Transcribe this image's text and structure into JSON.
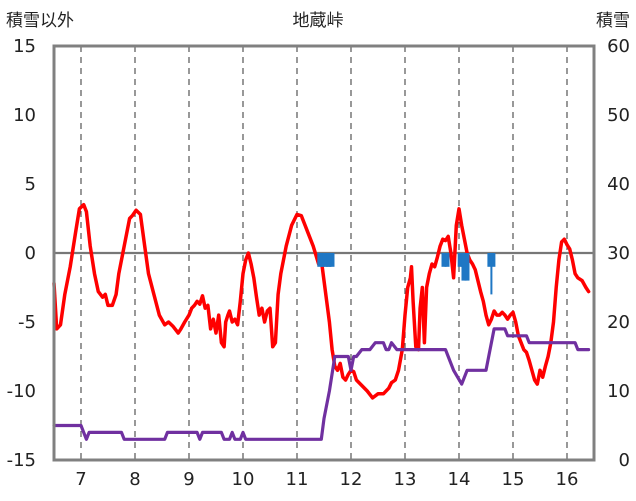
{
  "chart_data": {
    "type": "line",
    "title": "地蔵峠",
    "ylabel_left": "積雪以外",
    "ylabel_right": "積雪",
    "ylim_left": [
      -15,
      15
    ],
    "ylim_right": [
      0,
      60
    ],
    "left_ticks": [
      15,
      10,
      5,
      0,
      -5,
      -10,
      -15
    ],
    "right_ticks": [
      60,
      50,
      40,
      30,
      20,
      10,
      0
    ],
    "xlim": [
      6.5,
      16.5
    ],
    "x_ticks": [
      7,
      8,
      9,
      10,
      11,
      12,
      13,
      14,
      15,
      16
    ],
    "grid": "vertical-dashed",
    "colors": {
      "temperature": "#ff0000",
      "snow_depth": "#7030a0",
      "precipitation": "#1f77c4",
      "zero_line": "#777777",
      "frame": "#808080"
    },
    "series": [
      {
        "axis": "left",
        "color": "#ff0000",
        "points": [
          [
            6.5,
            -2.2
          ],
          [
            6.55,
            -5.5
          ],
          [
            6.62,
            -5.2
          ],
          [
            6.7,
            -3
          ],
          [
            6.8,
            -1
          ],
          [
            6.9,
            1.5
          ],
          [
            6.97,
            3.2
          ],
          [
            7.05,
            3.5
          ],
          [
            7.1,
            3
          ],
          [
            7.17,
            0.5
          ],
          [
            7.25,
            -1.5
          ],
          [
            7.32,
            -2.8
          ],
          [
            7.4,
            -3.2
          ],
          [
            7.45,
            -3
          ],
          [
            7.5,
            -3.8
          ],
          [
            7.58,
            -3.8
          ],
          [
            7.65,
            -3
          ],
          [
            7.7,
            -1.5
          ],
          [
            7.8,
            0.5
          ],
          [
            7.9,
            2.5
          ],
          [
            7.95,
            2.7
          ],
          [
            8.02,
            3.1
          ],
          [
            8.1,
            2.8
          ],
          [
            8.18,
            0.5
          ],
          [
            8.25,
            -1.5
          ],
          [
            8.35,
            -3
          ],
          [
            8.45,
            -4.5
          ],
          [
            8.55,
            -5.2
          ],
          [
            8.62,
            -5
          ],
          [
            8.7,
            -5.3
          ],
          [
            8.8,
            -5.8
          ],
          [
            8.85,
            -5.5
          ],
          [
            8.92,
            -5
          ],
          [
            9,
            -4.5
          ],
          [
            9.05,
            -4
          ],
          [
            9.1,
            -3.8
          ],
          [
            9.15,
            -3.5
          ],
          [
            9.2,
            -3.7
          ],
          [
            9.25,
            -3.1
          ],
          [
            9.3,
            -4
          ],
          [
            9.35,
            -3.8
          ],
          [
            9.4,
            -5.5
          ],
          [
            9.45,
            -4.8
          ],
          [
            9.5,
            -5.8
          ],
          [
            9.55,
            -4.5
          ],
          [
            9.6,
            -6.5
          ],
          [
            9.65,
            -6.8
          ],
          [
            9.68,
            -5
          ],
          [
            9.72,
            -4.5
          ],
          [
            9.75,
            -4.2
          ],
          [
            9.8,
            -5
          ],
          [
            9.85,
            -4.8
          ],
          [
            9.9,
            -5.2
          ],
          [
            9.95,
            -3.5
          ],
          [
            10,
            -1.5
          ],
          [
            10.05,
            -0.5
          ],
          [
            10.1,
            0
          ],
          [
            10.15,
            -0.8
          ],
          [
            10.2,
            -1.8
          ],
          [
            10.25,
            -3.2
          ],
          [
            10.3,
            -4.5
          ],
          [
            10.35,
            -4
          ],
          [
            10.4,
            -5
          ],
          [
            10.45,
            -4.2
          ],
          [
            10.5,
            -4
          ],
          [
            10.55,
            -6.8
          ],
          [
            10.6,
            -6.5
          ],
          [
            10.65,
            -3
          ],
          [
            10.7,
            -1.5
          ],
          [
            10.8,
            0.5
          ],
          [
            10.9,
            2
          ],
          [
            11,
            2.8
          ],
          [
            11.08,
            2.7
          ],
          [
            11.15,
            2
          ],
          [
            11.2,
            1.5
          ],
          [
            11.3,
            0.5
          ],
          [
            11.4,
            -0.8
          ],
          [
            11.45,
            -0.5
          ],
          [
            11.5,
            -2
          ],
          [
            11.55,
            -3.5
          ],
          [
            11.6,
            -5
          ],
          [
            11.65,
            -7
          ],
          [
            11.7,
            -8.2
          ],
          [
            11.75,
            -8.5
          ],
          [
            11.8,
            -8
          ],
          [
            11.85,
            -9
          ],
          [
            11.9,
            -9.2
          ],
          [
            11.95,
            -8.8
          ],
          [
            12,
            -8.5
          ],
          [
            12.05,
            -8.6
          ],
          [
            12.1,
            -9.2
          ],
          [
            12.2,
            -9.6
          ],
          [
            12.3,
            -10
          ],
          [
            12.4,
            -10.5
          ],
          [
            12.5,
            -10.2
          ],
          [
            12.6,
            -10.2
          ],
          [
            12.7,
            -9.8
          ],
          [
            12.75,
            -9.4
          ],
          [
            12.82,
            -9.2
          ],
          [
            12.88,
            -8.5
          ],
          [
            12.95,
            -7
          ],
          [
            13,
            -4.5
          ],
          [
            13.05,
            -2.5
          ],
          [
            13.1,
            -1.8
          ],
          [
            13.12,
            -1
          ],
          [
            13.15,
            -3.5
          ],
          [
            13.2,
            -6.8
          ],
          [
            13.25,
            -7
          ],
          [
            13.28,
            -4
          ],
          [
            13.32,
            -2.5
          ],
          [
            13.36,
            -6.5
          ],
          [
            13.4,
            -2.5
          ],
          [
            13.45,
            -1.5
          ],
          [
            13.5,
            -0.8
          ],
          [
            13.55,
            -1
          ],
          [
            13.6,
            -0.3
          ],
          [
            13.65,
            0.5
          ],
          [
            13.7,
            1
          ],
          [
            13.75,
            0.9
          ],
          [
            13.8,
            1.2
          ],
          [
            13.85,
            0
          ],
          [
            13.9,
            -1.8
          ],
          [
            13.95,
            2
          ],
          [
            14,
            3.2
          ],
          [
            14.05,
            2
          ],
          [
            14.1,
            1
          ],
          [
            14.15,
            0
          ],
          [
            14.2,
            -0.5
          ],
          [
            14.25,
            -0.8
          ],
          [
            14.3,
            -1.2
          ],
          [
            14.35,
            -2
          ],
          [
            14.4,
            -2.8
          ],
          [
            14.45,
            -3.5
          ],
          [
            14.5,
            -4.5
          ],
          [
            14.55,
            -5.2
          ],
          [
            14.6,
            -4.8
          ],
          [
            14.65,
            -4.2
          ],
          [
            14.7,
            -4.5
          ],
          [
            14.75,
            -4.5
          ],
          [
            14.8,
            -4.3
          ],
          [
            14.85,
            -4.5
          ],
          [
            14.9,
            -4.8
          ],
          [
            14.95,
            -4.5
          ],
          [
            15,
            -4.3
          ],
          [
            15.05,
            -5
          ],
          [
            15.1,
            -6
          ],
          [
            15.15,
            -6.5
          ],
          [
            15.2,
            -7
          ],
          [
            15.25,
            -7.2
          ],
          [
            15.3,
            -7.8
          ],
          [
            15.35,
            -8.5
          ],
          [
            15.4,
            -9.2
          ],
          [
            15.45,
            -9.5
          ],
          [
            15.5,
            -8.5
          ],
          [
            15.55,
            -9
          ],
          [
            15.6,
            -8.2
          ],
          [
            15.65,
            -7.5
          ],
          [
            15.7,
            -6.5
          ],
          [
            15.75,
            -5
          ],
          [
            15.8,
            -2.5
          ],
          [
            15.85,
            -0.5
          ],
          [
            15.9,
            0.8
          ],
          [
            15.95,
            1
          ],
          [
            16,
            0.6
          ],
          [
            16.05,
            0.3
          ],
          [
            16.1,
            -0.5
          ],
          [
            16.15,
            -1.5
          ],
          [
            16.2,
            -1.8
          ],
          [
            16.28,
            -2
          ],
          [
            16.35,
            -2.5
          ],
          [
            16.4,
            -2.8
          ]
        ]
      },
      {
        "axis": "right",
        "color": "#7030a0",
        "points": [
          [
            6.5,
            5
          ],
          [
            7,
            5
          ],
          [
            7.05,
            4
          ],
          [
            7.1,
            3
          ],
          [
            7.15,
            4
          ],
          [
            7.75,
            4
          ],
          [
            7.8,
            3
          ],
          [
            8.55,
            3
          ],
          [
            8.6,
            4
          ],
          [
            9.15,
            4
          ],
          [
            9.2,
            3
          ],
          [
            9.25,
            4
          ],
          [
            9.6,
            4
          ],
          [
            9.65,
            3
          ],
          [
            9.75,
            3
          ],
          [
            9.8,
            4
          ],
          [
            9.85,
            3
          ],
          [
            9.95,
            3
          ],
          [
            10,
            4
          ],
          [
            10.05,
            3
          ],
          [
            11.45,
            3
          ],
          [
            11.5,
            6
          ],
          [
            11.6,
            10
          ],
          [
            11.7,
            15
          ],
          [
            11.95,
            15
          ],
          [
            12,
            13
          ],
          [
            12.05,
            15
          ],
          [
            12.1,
            15
          ],
          [
            12.2,
            16
          ],
          [
            12.35,
            16
          ],
          [
            12.45,
            17
          ],
          [
            12.6,
            17
          ],
          [
            12.65,
            16
          ],
          [
            12.7,
            16
          ],
          [
            12.75,
            17
          ],
          [
            12.85,
            16
          ],
          [
            13.75,
            16
          ],
          [
            13.8,
            15
          ],
          [
            13.9,
            13
          ],
          [
            14.05,
            11
          ],
          [
            14.15,
            13
          ],
          [
            14.5,
            13
          ],
          [
            14.55,
            15
          ],
          [
            14.65,
            19
          ],
          [
            14.85,
            19
          ],
          [
            14.9,
            18
          ],
          [
            15.25,
            18
          ],
          [
            15.3,
            17
          ],
          [
            16.15,
            17
          ],
          [
            16.2,
            16
          ],
          [
            16.4,
            16
          ]
        ]
      },
      {
        "axis": "left",
        "type": "bar",
        "color": "#1f77c4",
        "bars": [
          [
            11.45,
            -1,
            -1
          ],
          [
            11.55,
            -1,
            -1
          ],
          [
            11.62,
            -1,
            -1
          ],
          [
            13.75,
            -1,
            -1
          ],
          [
            14.05,
            -1,
            -1
          ],
          [
            14.12,
            -2,
            -2
          ],
          [
            14.6,
            -3,
            -1
          ]
        ]
      }
    ]
  }
}
